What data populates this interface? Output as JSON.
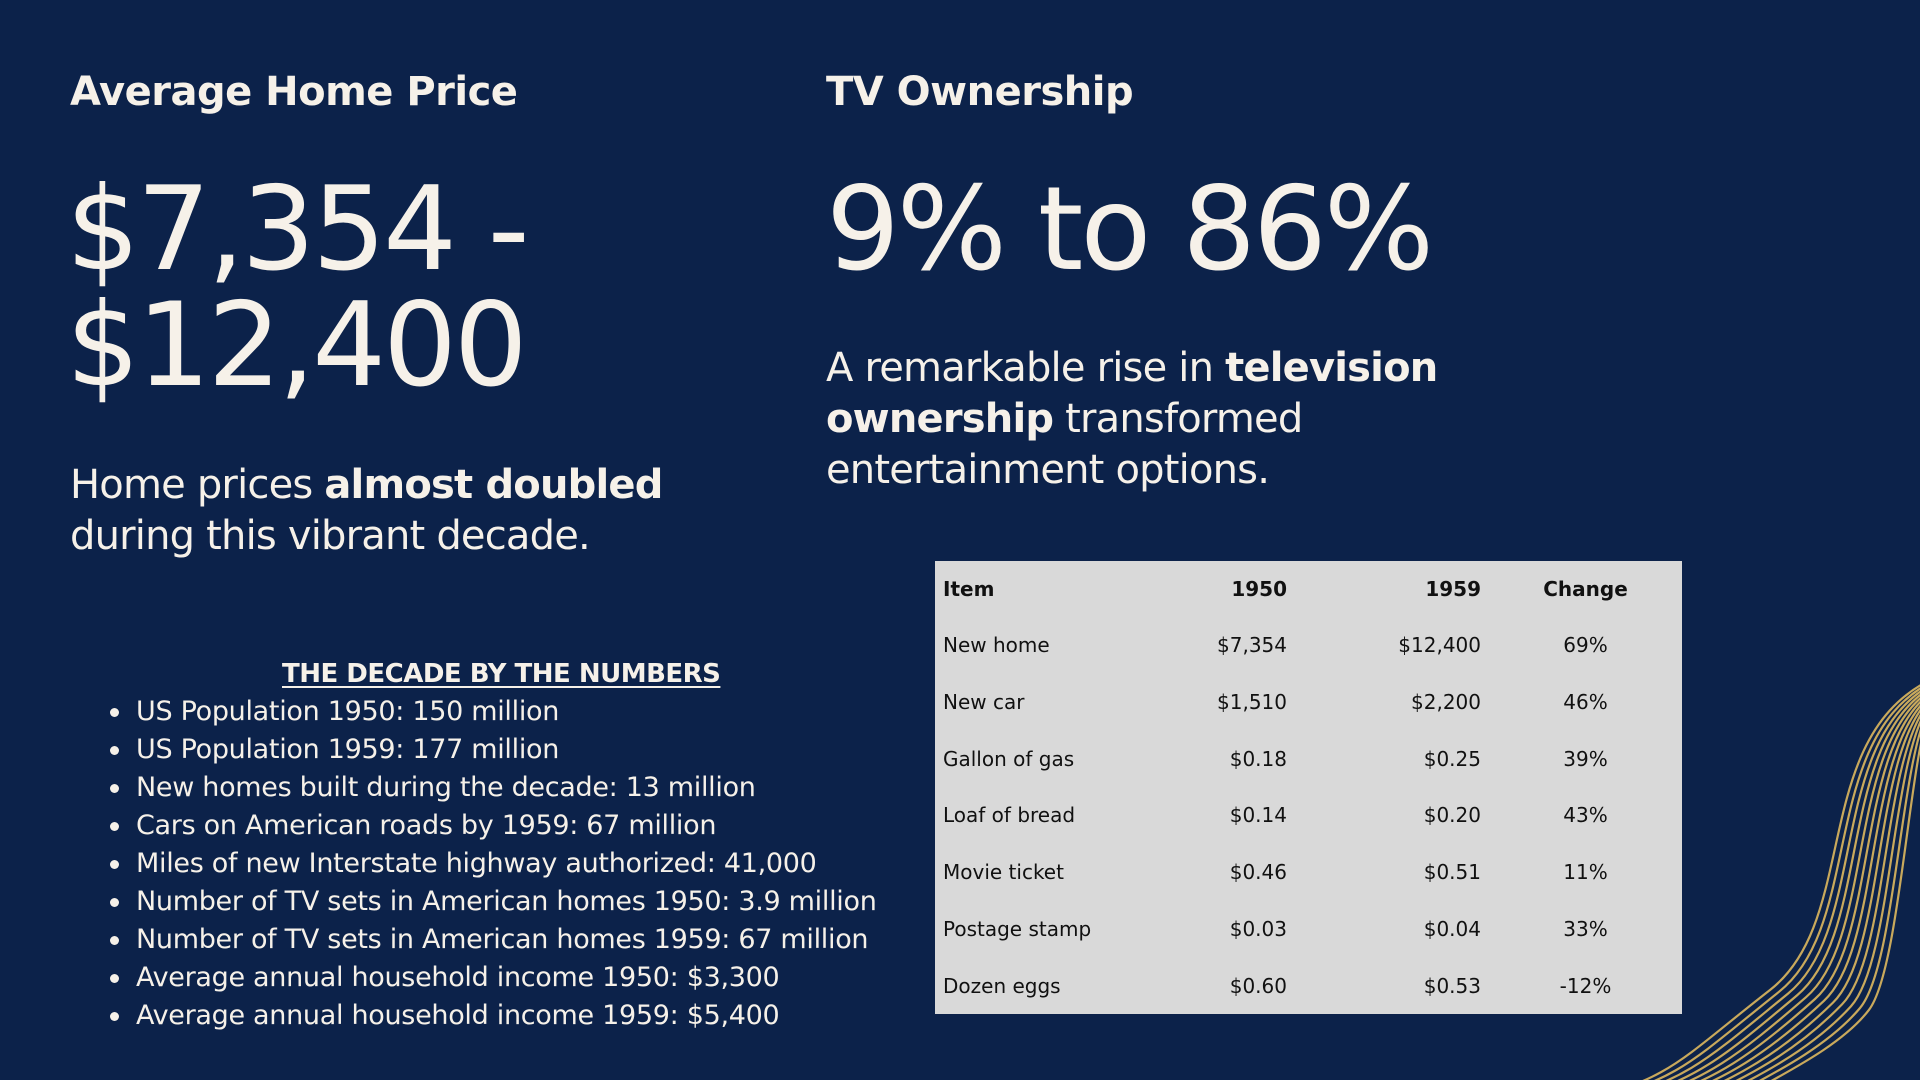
{
  "home": {
    "heading": "Average Home Price",
    "big_line1": "$7,354 -",
    "big_line2": "$12,400",
    "desc_pre": "Home prices ",
    "desc_bold": "almost doubled",
    "desc_post": " during this vibrant decade."
  },
  "tv": {
    "heading": "TV Ownership",
    "big": "9% to 86%",
    "desc_pre": "A remarkable rise in ",
    "desc_bold": "television ownership",
    "desc_post": " transformed entertainment options."
  },
  "numbers": {
    "title": "THE DECADE BY THE NUMBERS",
    "items": [
      "US Population 1950: 150 million",
      "US Population 1959: 177 million",
      "New homes built during the decade: 13 million",
      "Cars on American roads by 1959: 67 million",
      "Miles of new Interstate highway authorized: 41,000",
      "Number of TV sets in American homes 1950: 3.9 million",
      "Number of TV sets in American homes 1959: 67 million",
      "Average annual household income 1950: $3,300",
      "Average annual household income 1959: $5,400"
    ]
  },
  "table": {
    "headers": [
      "Item",
      "1950",
      "1959",
      "Change"
    ],
    "rows": [
      [
        "New home",
        "$7,354",
        "$12,400",
        "69%"
      ],
      [
        "New car",
        "$1,510",
        "$2,200",
        "46%"
      ],
      [
        "Gallon of gas",
        "$0.18",
        "$0.25",
        "39%"
      ],
      [
        "Loaf of bread",
        "$0.14",
        "$0.20",
        "43%"
      ],
      [
        "Movie ticket",
        "$0.46",
        "$0.51",
        "11%"
      ],
      [
        "Postage stamp",
        "$0.03",
        "$0.04",
        "33%"
      ],
      [
        "Dozen eggs",
        "$0.60",
        "$0.53",
        "-12%"
      ]
    ]
  },
  "colors": {
    "background": "#0c224a",
    "text": "#f6f1e9",
    "table_background": "#d9d9d9",
    "wave_lines": "#c9a95c"
  },
  "decoration": {
    "wave_icon": "gold-wave-lines"
  }
}
